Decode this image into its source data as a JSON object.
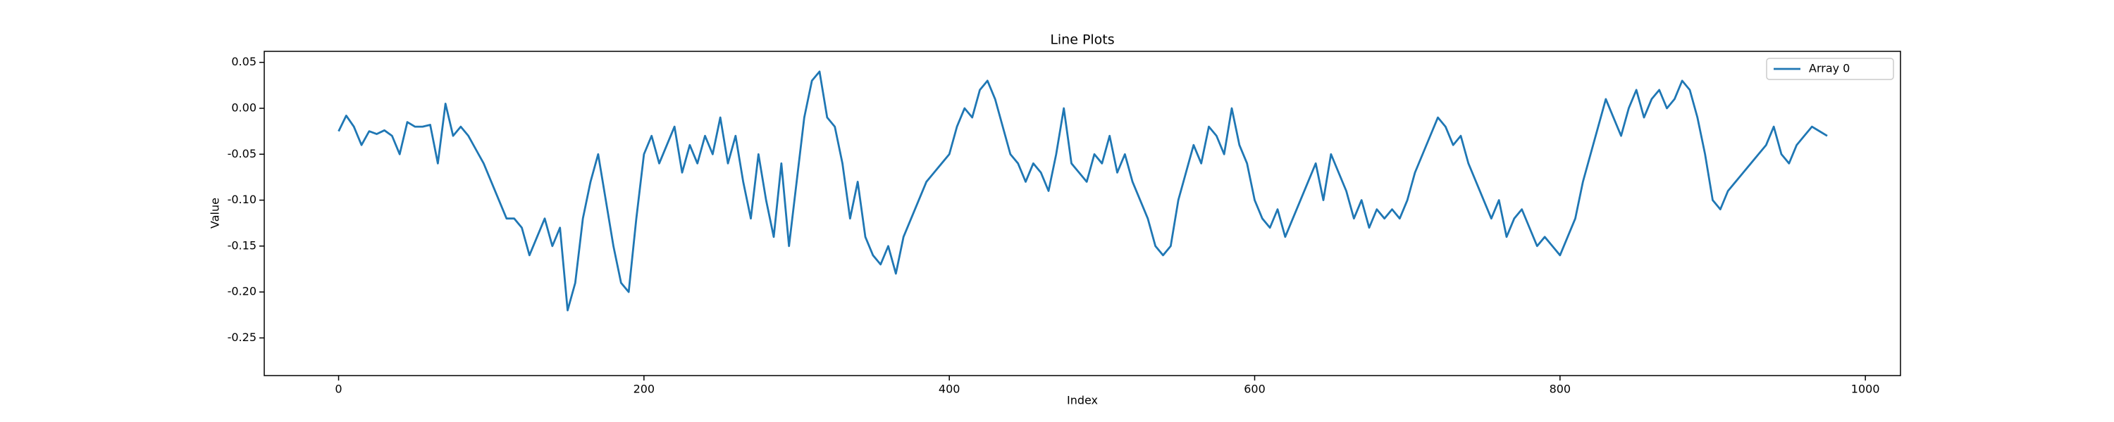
{
  "chart_data": {
    "type": "line",
    "title": "Line Plots",
    "x_label": "Index",
    "y_label": "Value",
    "x": [
      0,
      5,
      10,
      15,
      20,
      25,
      30,
      35,
      40,
      45,
      50,
      55,
      60,
      65,
      70,
      75,
      80,
      85,
      90,
      95,
      100,
      105,
      110,
      115,
      120,
      125,
      130,
      135,
      140,
      145,
      150,
      155,
      160,
      165,
      170,
      175,
      180,
      185,
      190,
      195,
      200,
      205,
      210,
      215,
      220,
      225,
      230,
      235,
      240,
      245,
      250,
      255,
      260,
      265,
      270,
      275,
      280,
      285,
      290,
      295,
      300,
      305,
      310,
      315,
      320,
      325,
      330,
      335,
      340,
      345,
      350,
      355,
      360,
      365,
      370,
      375,
      380,
      385,
      390,
      395,
      400,
      405,
      410,
      415,
      420,
      425,
      430,
      435,
      440,
      445,
      450,
      455,
      460,
      465,
      470,
      475,
      480,
      485,
      490,
      495,
      500,
      505,
      510,
      515,
      520,
      525,
      530,
      535,
      540,
      545,
      550,
      555,
      560,
      565,
      570,
      575,
      580,
      585,
      590,
      595,
      600,
      605,
      610,
      615,
      620,
      625,
      630,
      635,
      640,
      645,
      650,
      655,
      660,
      665,
      670,
      675,
      680,
      685,
      690,
      695,
      700,
      705,
      710,
      715,
      720,
      725,
      730,
      735,
      740,
      745,
      750,
      755,
      760,
      765,
      770,
      775,
      780,
      785,
      790,
      795,
      800,
      805,
      810,
      815,
      820,
      825,
      830,
      835,
      840,
      845,
      850,
      855,
      860,
      865,
      870,
      875,
      880,
      885,
      890,
      895,
      900,
      905,
      910,
      915,
      920,
      925,
      930,
      935,
      940,
      945,
      950,
      955,
      960,
      965,
      970,
      975
    ],
    "series": [
      {
        "name": "Array 0",
        "color": "#1f77b4",
        "values": [
          -0.025,
          -0.008,
          -0.02,
          -0.04,
          -0.025,
          -0.028,
          -0.024,
          -0.03,
          -0.05,
          -0.015,
          -0.02,
          -0.02,
          -0.018,
          -0.06,
          0.005,
          -0.03,
          -0.02,
          -0.03,
          -0.045,
          -0.06,
          -0.08,
          -0.1,
          -0.12,
          -0.12,
          -0.13,
          -0.16,
          -0.14,
          -0.12,
          -0.15,
          -0.13,
          -0.22,
          -0.19,
          -0.12,
          -0.08,
          -0.05,
          -0.1,
          -0.15,
          -0.19,
          -0.2,
          -0.12,
          -0.05,
          -0.03,
          -0.06,
          -0.04,
          -0.02,
          -0.07,
          -0.04,
          -0.06,
          -0.03,
          -0.05,
          -0.01,
          -0.06,
          -0.03,
          -0.08,
          -0.12,
          -0.05,
          -0.1,
          -0.14,
          -0.06,
          -0.15,
          -0.08,
          -0.01,
          0.03,
          0.04,
          -0.01,
          -0.02,
          -0.06,
          -0.12,
          -0.08,
          -0.14,
          -0.16,
          -0.17,
          -0.15,
          -0.18,
          -0.14,
          -0.12,
          -0.1,
          -0.08,
          -0.07,
          -0.06,
          -0.05,
          -0.02,
          0.0,
          -0.01,
          0.02,
          0.03,
          0.01,
          -0.02,
          -0.05,
          -0.06,
          -0.08,
          -0.06,
          -0.07,
          -0.09,
          -0.05,
          0.0,
          -0.06,
          -0.07,
          -0.08,
          -0.05,
          -0.06,
          -0.03,
          -0.07,
          -0.05,
          -0.08,
          -0.1,
          -0.12,
          -0.15,
          -0.16,
          -0.15,
          -0.1,
          -0.07,
          -0.04,
          -0.06,
          -0.02,
          -0.03,
          -0.05,
          0.0,
          -0.04,
          -0.06,
          -0.1,
          -0.12,
          -0.13,
          -0.11,
          -0.14,
          -0.12,
          -0.1,
          -0.08,
          -0.06,
          -0.1,
          -0.05,
          -0.07,
          -0.09,
          -0.12,
          -0.1,
          -0.13,
          -0.11,
          -0.12,
          -0.11,
          -0.12,
          -0.1,
          -0.07,
          -0.05,
          -0.03,
          -0.01,
          -0.02,
          -0.04,
          -0.03,
          -0.06,
          -0.08,
          -0.1,
          -0.12,
          -0.1,
          -0.14,
          -0.12,
          -0.11,
          -0.13,
          -0.15,
          -0.14,
          -0.15,
          -0.16,
          -0.14,
          -0.12,
          -0.08,
          -0.05,
          -0.02,
          0.01,
          -0.01,
          -0.03,
          0.0,
          0.02,
          -0.01,
          0.01,
          0.02,
          0.0,
          0.01,
          0.03,
          0.02,
          -0.01,
          -0.05,
          -0.1,
          -0.11,
          -0.09,
          -0.08,
          -0.07,
          -0.06,
          -0.05,
          -0.04,
          -0.02,
          -0.05,
          -0.06,
          -0.04,
          -0.03,
          -0.02,
          -0.025,
          -0.03
        ]
      }
    ],
    "xlim": [
      -48.7,
      1023
    ],
    "ylim": [
      -0.291,
      0.062
    ],
    "xticks": [
      0,
      200,
      400,
      600,
      800,
      1000
    ],
    "yticks": [
      0.05,
      {
        "value": 0,
        "label": "0.00"
      },
      -0.05,
      {
        "value": -0.1,
        "label": "-0.10"
      },
      -0.15,
      {
        "value": -0.2,
        "label": "-0.20"
      },
      -0.25
    ],
    "legend": "upper right"
  }
}
